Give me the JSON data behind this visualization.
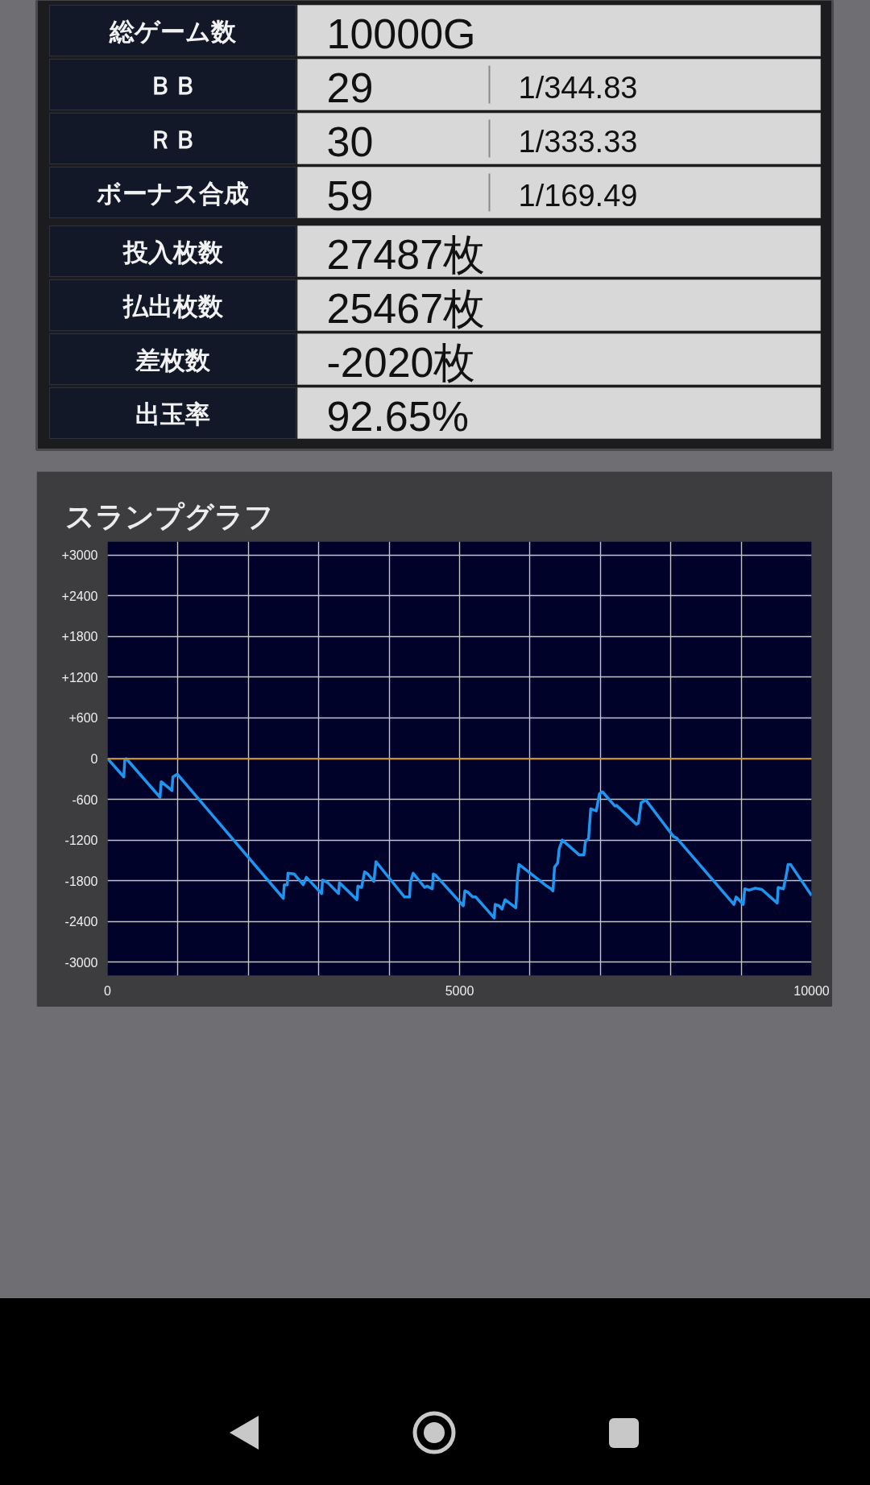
{
  "chart_data": [
    {
      "type": "other",
      "y_categories": [
        "総ゲーム数",
        "ＢＢ",
        "ＲＢ",
        "ボーナス合成",
        "投入枚数",
        "払出枚数",
        "差枚数",
        "出玉率"
      ],
      "cell_labels": [
        [
          "10000G",
          null
        ],
        [
          "29",
          "1/344.83"
        ],
        [
          "30",
          "1/333.33"
        ],
        [
          "59",
          "1/169.49"
        ],
        [
          "27487枚",
          null
        ],
        [
          "25467枚",
          null
        ],
        [
          "-2020枚",
          null
        ],
        [
          "92.65%",
          null
        ]
      ]
    },
    {
      "type": "line",
      "title": "スランプグラフ",
      "xlim": [
        0,
        10000
      ],
      "ylim": [
        -3200,
        3200
      ],
      "xticks": [
        0,
        {
          "value": 1000,
          "label": null
        },
        {
          "value": 2000,
          "label": null
        },
        {
          "value": 3000,
          "label": null
        },
        {
          "value": 4000,
          "label": null
        },
        5000,
        {
          "value": 6000,
          "label": null
        },
        {
          "value": 7000,
          "label": null
        },
        {
          "value": 8000,
          "label": null
        },
        {
          "value": 9000,
          "label": null
        },
        10000
      ],
      "yticks": [
        {
          "value": 3000,
          "label": "+3000"
        },
        {
          "value": 2400,
          "label": "+2400"
        },
        {
          "value": 1800,
          "label": "+1800"
        },
        {
          "value": 1200,
          "label": "+1200"
        },
        {
          "value": 600,
          "label": "+600"
        },
        0,
        -600,
        -1200,
        -1800,
        -2400,
        -3000
      ],
      "grid": true,
      "marker": "none",
      "line_style": "solid",
      "ref_lines": [
        {
          "axis": "y",
          "value": 0,
          "color": "#c8902a"
        }
      ],
      "series": [
        {
          "color": "#1e96f0",
          "x": [
            0,
            231,
            245,
            265,
            745,
            762,
            915,
            928,
            993,
            2497,
            2510,
            2553,
            2562,
            2649,
            2780,
            2824,
            3041,
            3054,
            3129,
            3281,
            3294,
            3542,
            3556,
            3608,
            3651,
            3695,
            3782,
            3813,
            4218,
            4290,
            4300,
            4341,
            4504,
            4540,
            4613,
            4627,
            4660,
            5053,
            5075,
            5120,
            5185,
            5230,
            5492,
            5505,
            5560,
            5602,
            5646,
            5800,
            5822,
            5844,
            6239,
            6300,
            6327,
            6349,
            6393,
            6415,
            6459,
            6700,
            6766,
            6788,
            6832,
            6863,
            6942,
            6986,
            7030,
            7206,
            7230,
            7513,
            7540,
            7579,
            7645,
            8040,
            8084,
            8897,
            8928,
            9029,
            9051,
            9110,
            9200,
            9293,
            9512,
            9525,
            9600,
            9644,
            9666,
            9700,
            10000
          ],
          "values": [
            0,
            -270,
            -20,
            0,
            -570,
            -340,
            -470,
            -270,
            -230,
            -2060,
            -1860,
            -1860,
            -1690,
            -1700,
            -1860,
            -1750,
            -1990,
            -1790,
            -1830,
            -1990,
            -1830,
            -2080,
            -1880,
            -1900,
            -1670,
            -1700,
            -1810,
            -1520,
            -2040,
            -2040,
            -1830,
            -1690,
            -1900,
            -1880,
            -1920,
            -1700,
            -1720,
            -2170,
            -1950,
            -1970,
            -2040,
            -2040,
            -2350,
            -2150,
            -2170,
            -2220,
            -2080,
            -2200,
            -1760,
            -1560,
            -1880,
            -1920,
            -1950,
            -1600,
            -1540,
            -1330,
            -1200,
            -1420,
            -1420,
            -1220,
            -1180,
            -740,
            -770,
            -520,
            -490,
            -700,
            -690,
            -970,
            -950,
            -650,
            -610,
            -1150,
            -1170,
            -2150,
            -2040,
            -2150,
            -1920,
            -1940,
            -1910,
            -1930,
            -2130,
            -1900,
            -1920,
            -1700,
            -1560,
            -1560,
            -2020
          ]
        }
      ]
    }
  ]
}
